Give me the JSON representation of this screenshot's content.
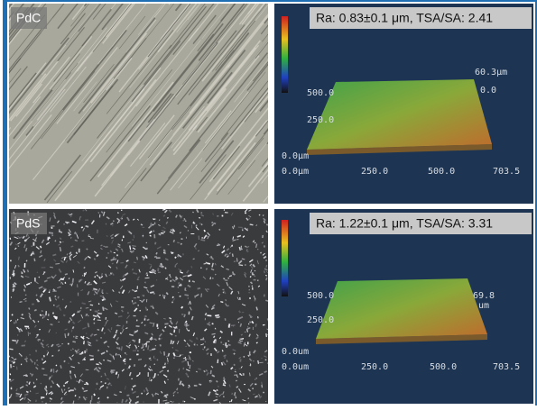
{
  "panels": [
    {
      "label": "PdC",
      "stats": "Ra: 0.83±0.1 μm, TSA/SA: 2.41",
      "x_axis": [
        "0.0μm",
        "250.0",
        "500.0",
        "703.5"
      ],
      "y_axis": [
        "500.0",
        "250.0",
        "0.0μm"
      ],
      "z_axis": [
        "60.3μm",
        "0.0"
      ]
    },
    {
      "label": "PdS",
      "stats": "Ra: 1.22±0.1 μm, TSA/SA: 3.31",
      "x_axis": [
        "0.0um",
        "250.0",
        "500.0",
        "703.5"
      ],
      "y_axis": [
        "500.0",
        "250.0",
        "0.0um"
      ],
      "z_axis": [
        "69.8",
        "um"
      ]
    }
  ]
}
